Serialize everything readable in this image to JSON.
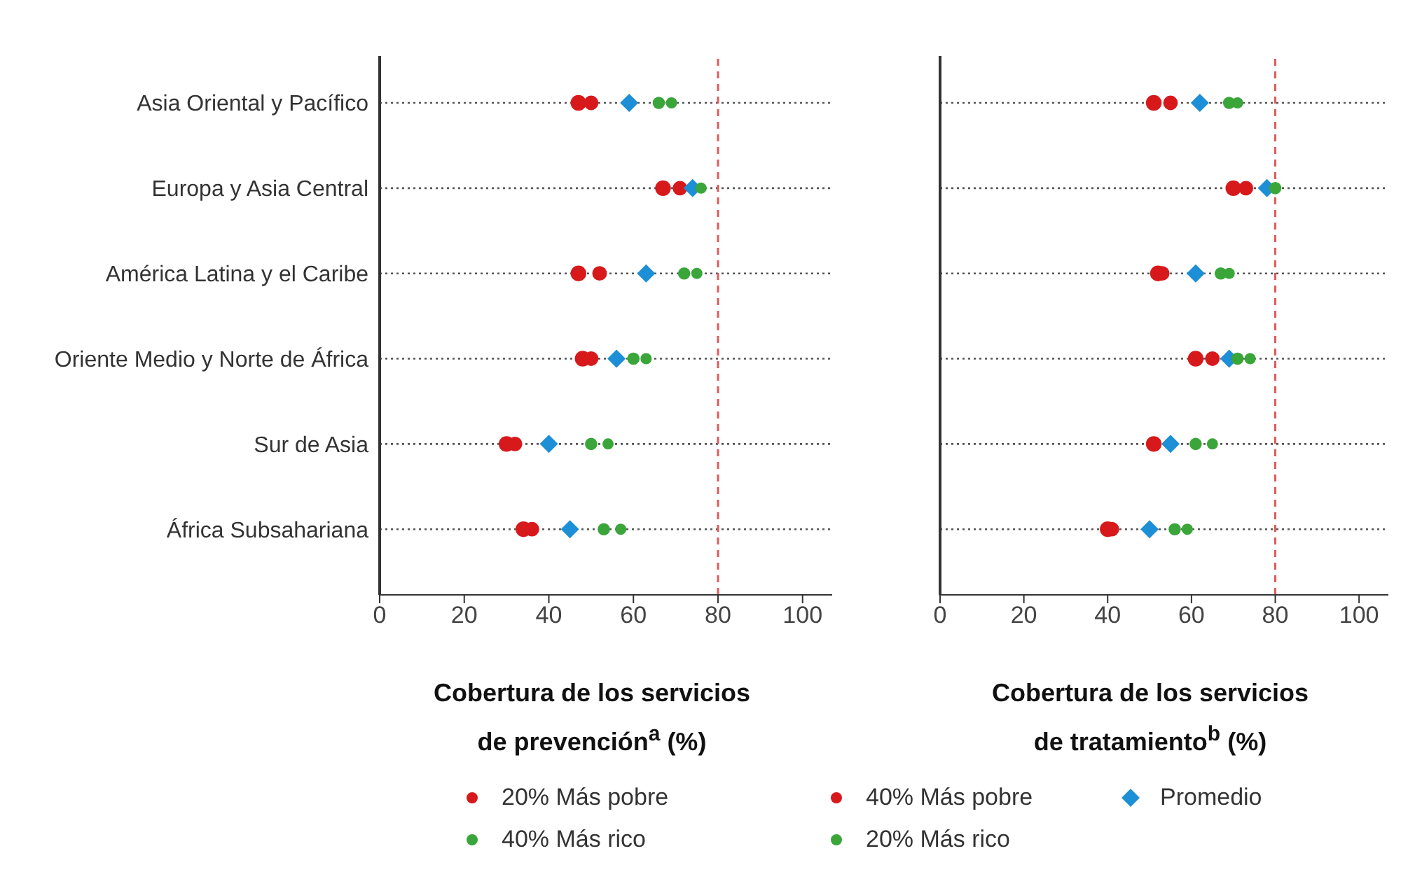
{
  "chart_data": [
    {
      "type": "scatter",
      "orientation": "horizontal",
      "categories": [
        "Asia Oriental y Pacífico",
        "Europa y Asia Central",
        "América Latina y el Caribe",
        "Oriente Medio y Norte de África",
        "Sur de Asia",
        "África Subsahariana"
      ],
      "xlabel": "Cobertura de los servicios de prevención$^{a}$ (%)",
      "xlim": [
        0,
        107
      ],
      "xticks": [
        0,
        20,
        40,
        60,
        80,
        100
      ],
      "grid": "y",
      "legend": "bottom",
      "ref_lines": [
        {
          "axis": "x",
          "value": 80,
          "color": "#e05a5a",
          "line_style": "dashed"
        }
      ],
      "series": [
        {
          "name": "20% Más pobre",
          "color": "#d7191c",
          "marker": "circle",
          "values": [
            47,
            67,
            47,
            48,
            30,
            34
          ]
        },
        {
          "name": "40% Más pobre",
          "color": "#d7191c",
          "marker": "circle",
          "values": [
            50,
            71,
            52,
            50,
            32,
            36
          ]
        },
        {
          "name": "Promedio",
          "color": "#1c8fd6",
          "marker": "diamond",
          "values": [
            59,
            74,
            63,
            56,
            40,
            45
          ]
        },
        {
          "name": "40% Más rico",
          "color": "#3aa63a",
          "marker": "circle",
          "values": [
            66,
            null,
            72,
            60,
            50,
            53
          ]
        },
        {
          "name": "20% Más rico",
          "color": "#3aa63a",
          "marker": "circle",
          "values": [
            69,
            76,
            75,
            63,
            54,
            57
          ]
        }
      ]
    },
    {
      "type": "scatter",
      "orientation": "horizontal",
      "categories": [
        null,
        null,
        null,
        null,
        null,
        null
      ],
      "xlabel": "Cobertura de los servicios de tratamiento$^{b}$  (%)",
      "xlim": [
        0,
        107
      ],
      "xticks": [
        0,
        20,
        40,
        60,
        80,
        100
      ],
      "grid": "y",
      "ref_lines": [
        {
          "axis": "x",
          "value": 80,
          "color": "#e05a5a",
          "line_style": "dashed"
        }
      ],
      "series": [
        {
          "color": "#d7191c",
          "marker": "circle",
          "values": [
            51,
            70,
            52,
            61,
            51,
            40
          ]
        },
        {
          "color": "#d7191c",
          "marker": "circle",
          "values": [
            55,
            73,
            53,
            65,
            null,
            41
          ]
        },
        {
          "color": "#1c8fd6",
          "marker": "diamond",
          "values": [
            62,
            78,
            61,
            69,
            55,
            50
          ]
        },
        {
          "color": "#3aa63a",
          "marker": "circle",
          "values": [
            69,
            80,
            67,
            71,
            61,
            56
          ]
        },
        {
          "color": "#3aa63a",
          "marker": "circle",
          "values": [
            71,
            null,
            69,
            74,
            65,
            59
          ]
        }
      ]
    }
  ]
}
